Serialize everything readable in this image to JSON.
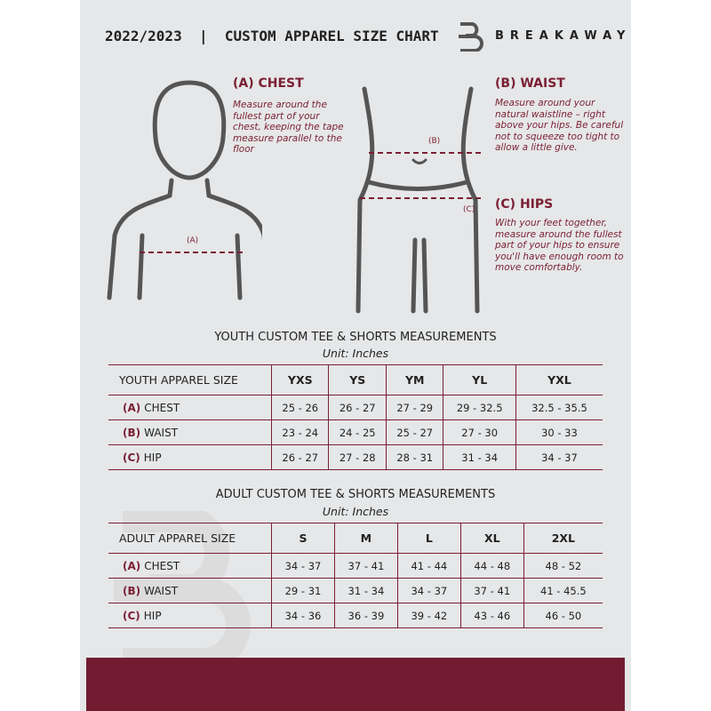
{
  "header": {
    "title": "2022/2023  |  CUSTOM APPAREL SIZE CHART",
    "brand": "BREAKAWAY"
  },
  "guide": {
    "chest": {
      "heading": "(A) CHEST",
      "text": "Measure around the fullest part of your chest, keeping the tape measure parallel to the floor",
      "marker": "(A)"
    },
    "waist": {
      "heading": "(B) WAIST",
      "text": "Measure around your natural waistline – right above your hips. Be careful not to squeeze too tight to allow a little give.",
      "marker": "(B)"
    },
    "hips": {
      "heading": "(C) HIPS",
      "text": "With your feet together, measure around the fullest part of your hips to ensure you'll have enough room to move comfortably.",
      "marker": "(C)"
    }
  },
  "youth": {
    "title": "YOUTH CUSTOM TEE & SHORTS MEASUREMENTS",
    "unit": "Unit: Inches",
    "size_label": "YOUTH APPAREL SIZE",
    "sizes": [
      "YXS",
      "YS",
      "YM",
      "YL",
      "YXL"
    ],
    "rows": [
      {
        "code": "(A)",
        "name": "CHEST",
        "values": [
          "25 - 26",
          "26 - 27",
          "27 - 29",
          "29 - 32.5",
          "32.5 - 35.5"
        ]
      },
      {
        "code": "(B)",
        "name": "WAIST",
        "values": [
          "23 - 24",
          "24 - 25",
          "25 - 27",
          "27 - 30",
          "30 - 33"
        ]
      },
      {
        "code": "(C)",
        "name": "HIP",
        "values": [
          "26 - 27",
          "27 - 28",
          "28 - 31",
          "31 - 34",
          "34 - 37"
        ]
      }
    ]
  },
  "adult": {
    "title": "ADULT CUSTOM TEE & SHORTS MEASUREMENTS",
    "unit": "Unit: Inches",
    "size_label": "ADULT APPAREL SIZE",
    "sizes": [
      "S",
      "M",
      "L",
      "XL",
      "2XL"
    ],
    "rows": [
      {
        "code": "(A)",
        "name": "CHEST",
        "values": [
          "34 - 37",
          "37 - 41",
          "41 - 44",
          "44 - 48",
          "48 - 52"
        ]
      },
      {
        "code": "(B)",
        "name": "WAIST",
        "values": [
          "29 - 31",
          "31 - 34",
          "34 - 37",
          "37 - 41",
          "41 - 45.5"
        ]
      },
      {
        "code": "(C)",
        "name": "HIP",
        "values": [
          "34 - 36",
          "36 - 39",
          "39 - 42",
          "43 - 46",
          "46 - 50"
        ]
      }
    ]
  },
  "colors": {
    "accent": "#7a1f33",
    "page": "#e6e7e8"
  }
}
